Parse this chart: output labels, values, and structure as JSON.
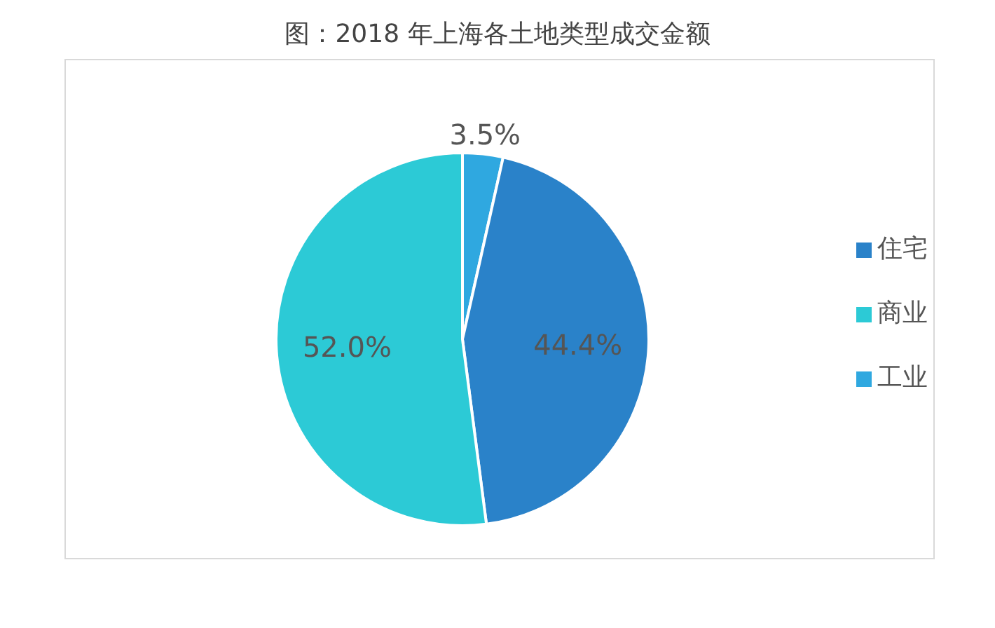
{
  "chart_data": {
    "type": "pie",
    "title": "图：2018 年上海各土地类型成交金额",
    "categories": [
      "工业",
      "住宅",
      "商业"
    ],
    "values": [
      3.5,
      44.4,
      52.0
    ],
    "colors": [
      "#2fa8e0",
      "#2a82c9",
      "#2ccad6"
    ],
    "value_labels": [
      "3.5%",
      "44.4%",
      "52.0%"
    ],
    "legend": "right"
  }
}
